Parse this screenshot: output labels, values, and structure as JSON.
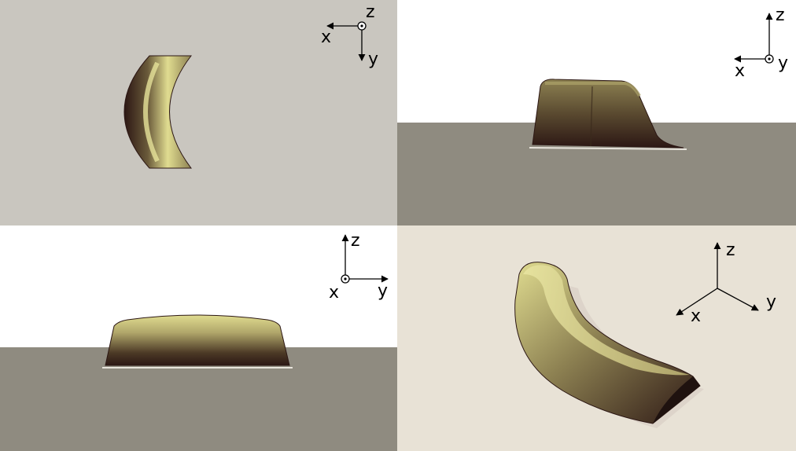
{
  "colors": {
    "top_bg": "#c9c6bf",
    "ground": "#8f8b80",
    "sky": "#ffffff",
    "iso_bg": "#e8e2d6",
    "shape_light": "#e0dc90",
    "shape_mid": "#8d8152",
    "shape_dark": "#2c1714"
  },
  "panels": {
    "top": {
      "axes": {
        "x": "x",
        "y": "y",
        "z": "z"
      }
    },
    "side_xz": {
      "axes": {
        "x": "x",
        "y": "y",
        "z": "z"
      }
    },
    "side_yz": {
      "axes": {
        "x": "x",
        "y": "y",
        "z": "z"
      }
    },
    "iso": {
      "axes": {
        "x": "x",
        "y": "y",
        "z": "z"
      }
    }
  }
}
